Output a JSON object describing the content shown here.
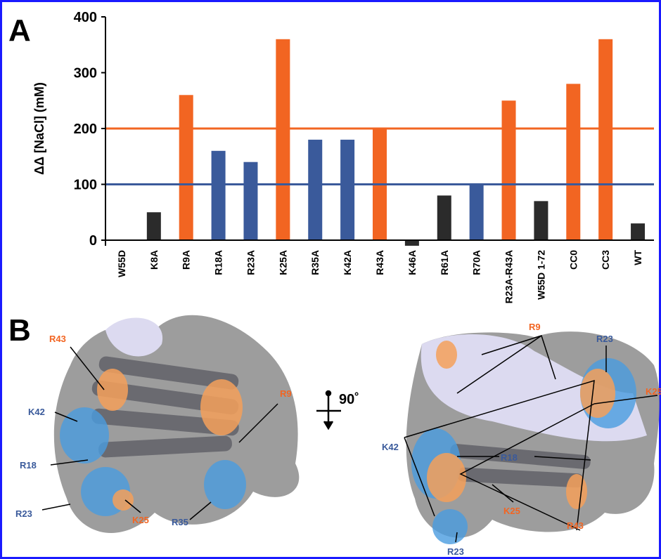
{
  "chart_data": {
    "type": "bar",
    "ylabel": "ΔΔ [NaCl] (mM)",
    "categories": [
      "W55D",
      "K8A",
      "R9A",
      "R18A",
      "R23A",
      "K25A",
      "R35A",
      "K42A",
      "R43A",
      "K46A",
      "R61A",
      "R70A",
      "R23A-R43A",
      "W55D 1-72",
      "CC0",
      "CC3",
      "WT"
    ],
    "values": [
      0,
      50,
      260,
      160,
      140,
      360,
      180,
      180,
      200,
      -10,
      80,
      100,
      250,
      70,
      280,
      360,
      30
    ],
    "colors": [
      "#2b2b2b",
      "#2b2b2b",
      "#f26522",
      "#3a5a9b",
      "#3a5a9b",
      "#f26522",
      "#3a5a9b",
      "#3a5a9b",
      "#f26522",
      "#2b2b2b",
      "#2b2b2b",
      "#3a5a9b",
      "#f26522",
      "#2b2b2b",
      "#f26522",
      "#f26522",
      "#2b2b2b"
    ],
    "reference_lines": [
      {
        "value": 200,
        "color": "#f26522"
      },
      {
        "value": 100,
        "color": "#3a5a9b"
      }
    ],
    "ylim": [
      -10,
      400
    ],
    "yticks": [
      0,
      100,
      200,
      300,
      400
    ]
  },
  "figure": {
    "panel_labels": [
      "A",
      "B"
    ],
    "rotation_label": "90˚",
    "left_view": [
      "R43",
      "K42",
      "R18",
      "R23",
      "K25",
      "R35",
      "R9"
    ],
    "right_view": [
      "R9",
      "R23",
      "K25",
      "K42",
      "R18",
      "K25",
      "R43",
      "R23"
    ]
  }
}
